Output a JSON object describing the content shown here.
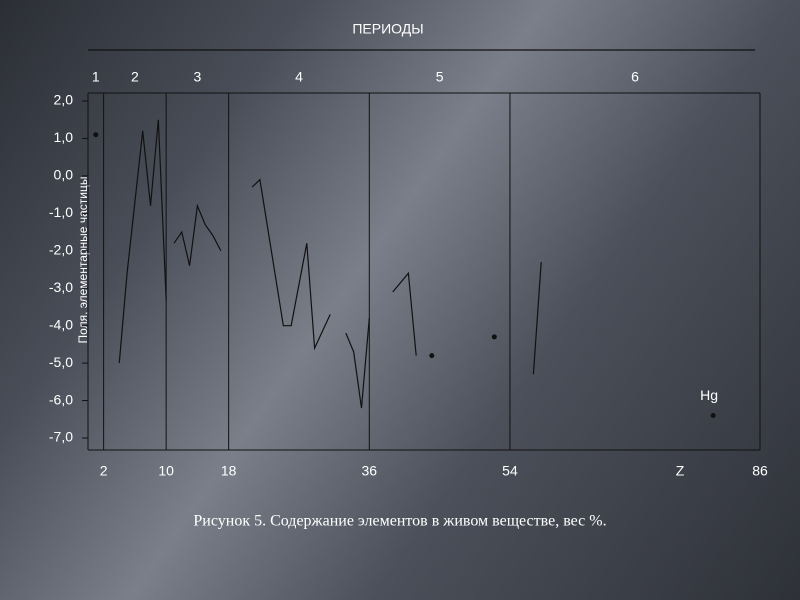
{
  "chart_data": {
    "type": "line",
    "title": "ПЕРИОДЫ",
    "ylabel": "Поля, элементарные частицы",
    "xlabel": "Z",
    "caption": "Рисунок  5. Содержание элементов в живом веществе, вес %.",
    "periods": [
      "1",
      "2",
      "3",
      "4",
      "5",
      "6"
    ],
    "annotation": "Hg",
    "color": "#111111",
    "grid": true,
    "xlim": [
      0,
      86
    ],
    "xticks": [
      2,
      10,
      18,
      36,
      54,
      86
    ],
    "ylim": [
      -7,
      2
    ],
    "yticks": [
      {
        "value": 2,
        "label": "2,0"
      },
      {
        "value": 1,
        "label": "1,0"
      },
      {
        "value": 0,
        "label": "0,0"
      },
      {
        "value": -1,
        "label": "-1,0"
      },
      {
        "value": -2,
        "label": "-2,0"
      },
      {
        "value": -3,
        "label": "-3,0"
      },
      {
        "value": -4,
        "label": "-4,0"
      },
      {
        "value": -5,
        "label": "-5,0"
      },
      {
        "value": -6,
        "label": "-6,0"
      },
      {
        "value": -7,
        "label": "-7,0"
      }
    ],
    "x": [
      1,
      null,
      4,
      5,
      7,
      8,
      9,
      10,
      null,
      11,
      12,
      13,
      14,
      15,
      16,
      17,
      null,
      21,
      22,
      25,
      26,
      28,
      29,
      31,
      null,
      33,
      34,
      35,
      36,
      null,
      39,
      41,
      42,
      null,
      44,
      null,
      52,
      null,
      57,
      58,
      null,
      80
    ],
    "values": [
      1.1,
      null,
      -5.0,
      -2.6,
      1.2,
      -0.8,
      1.5,
      -3.3,
      null,
      -1.8,
      -1.5,
      -2.4,
      -0.8,
      -1.3,
      -1.6,
      -2.0,
      null,
      -0.3,
      -0.1,
      -4.0,
      -4.0,
      -1.8,
      -4.6,
      -3.7,
      null,
      -4.2,
      -4.7,
      -6.2,
      -3.8,
      null,
      -3.1,
      -2.6,
      -4.8,
      null,
      -4.8,
      null,
      -4.3,
      null,
      -5.3,
      -2.3,
      null,
      -6.4
    ]
  }
}
